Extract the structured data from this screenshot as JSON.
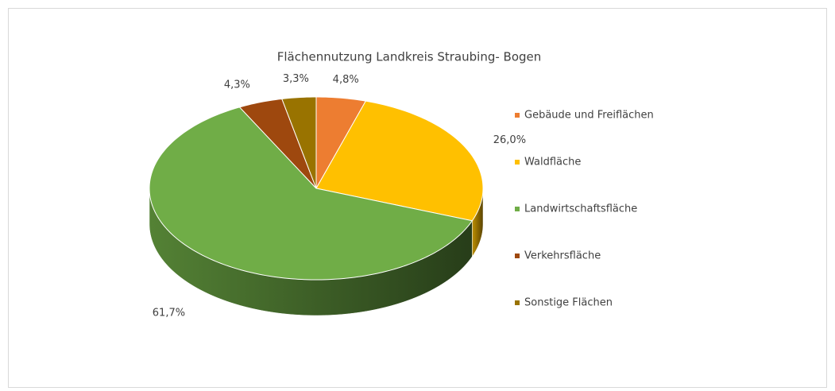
{
  "chart_data": {
    "type": "pie",
    "title": "Flächennutzung Landkreis Straubing- Bogen",
    "categories": [
      "Gebäude und Freiflächen",
      "Waldfläche",
      "Landwirtschaftsfläche",
      "Verkehrsfläche",
      "Sonstige Flächen"
    ],
    "values": [
      4.8,
      26.0,
      61.7,
      4.3,
      3.3
    ],
    "value_labels": [
      "4,8%",
      "26,0%",
      "61,7%",
      "4,3%",
      "3,3%"
    ],
    "colors": [
      "#ed7d31",
      "#ffc000",
      "#70ad47",
      "#9e480e",
      "#997300"
    ],
    "legend": "right"
  }
}
